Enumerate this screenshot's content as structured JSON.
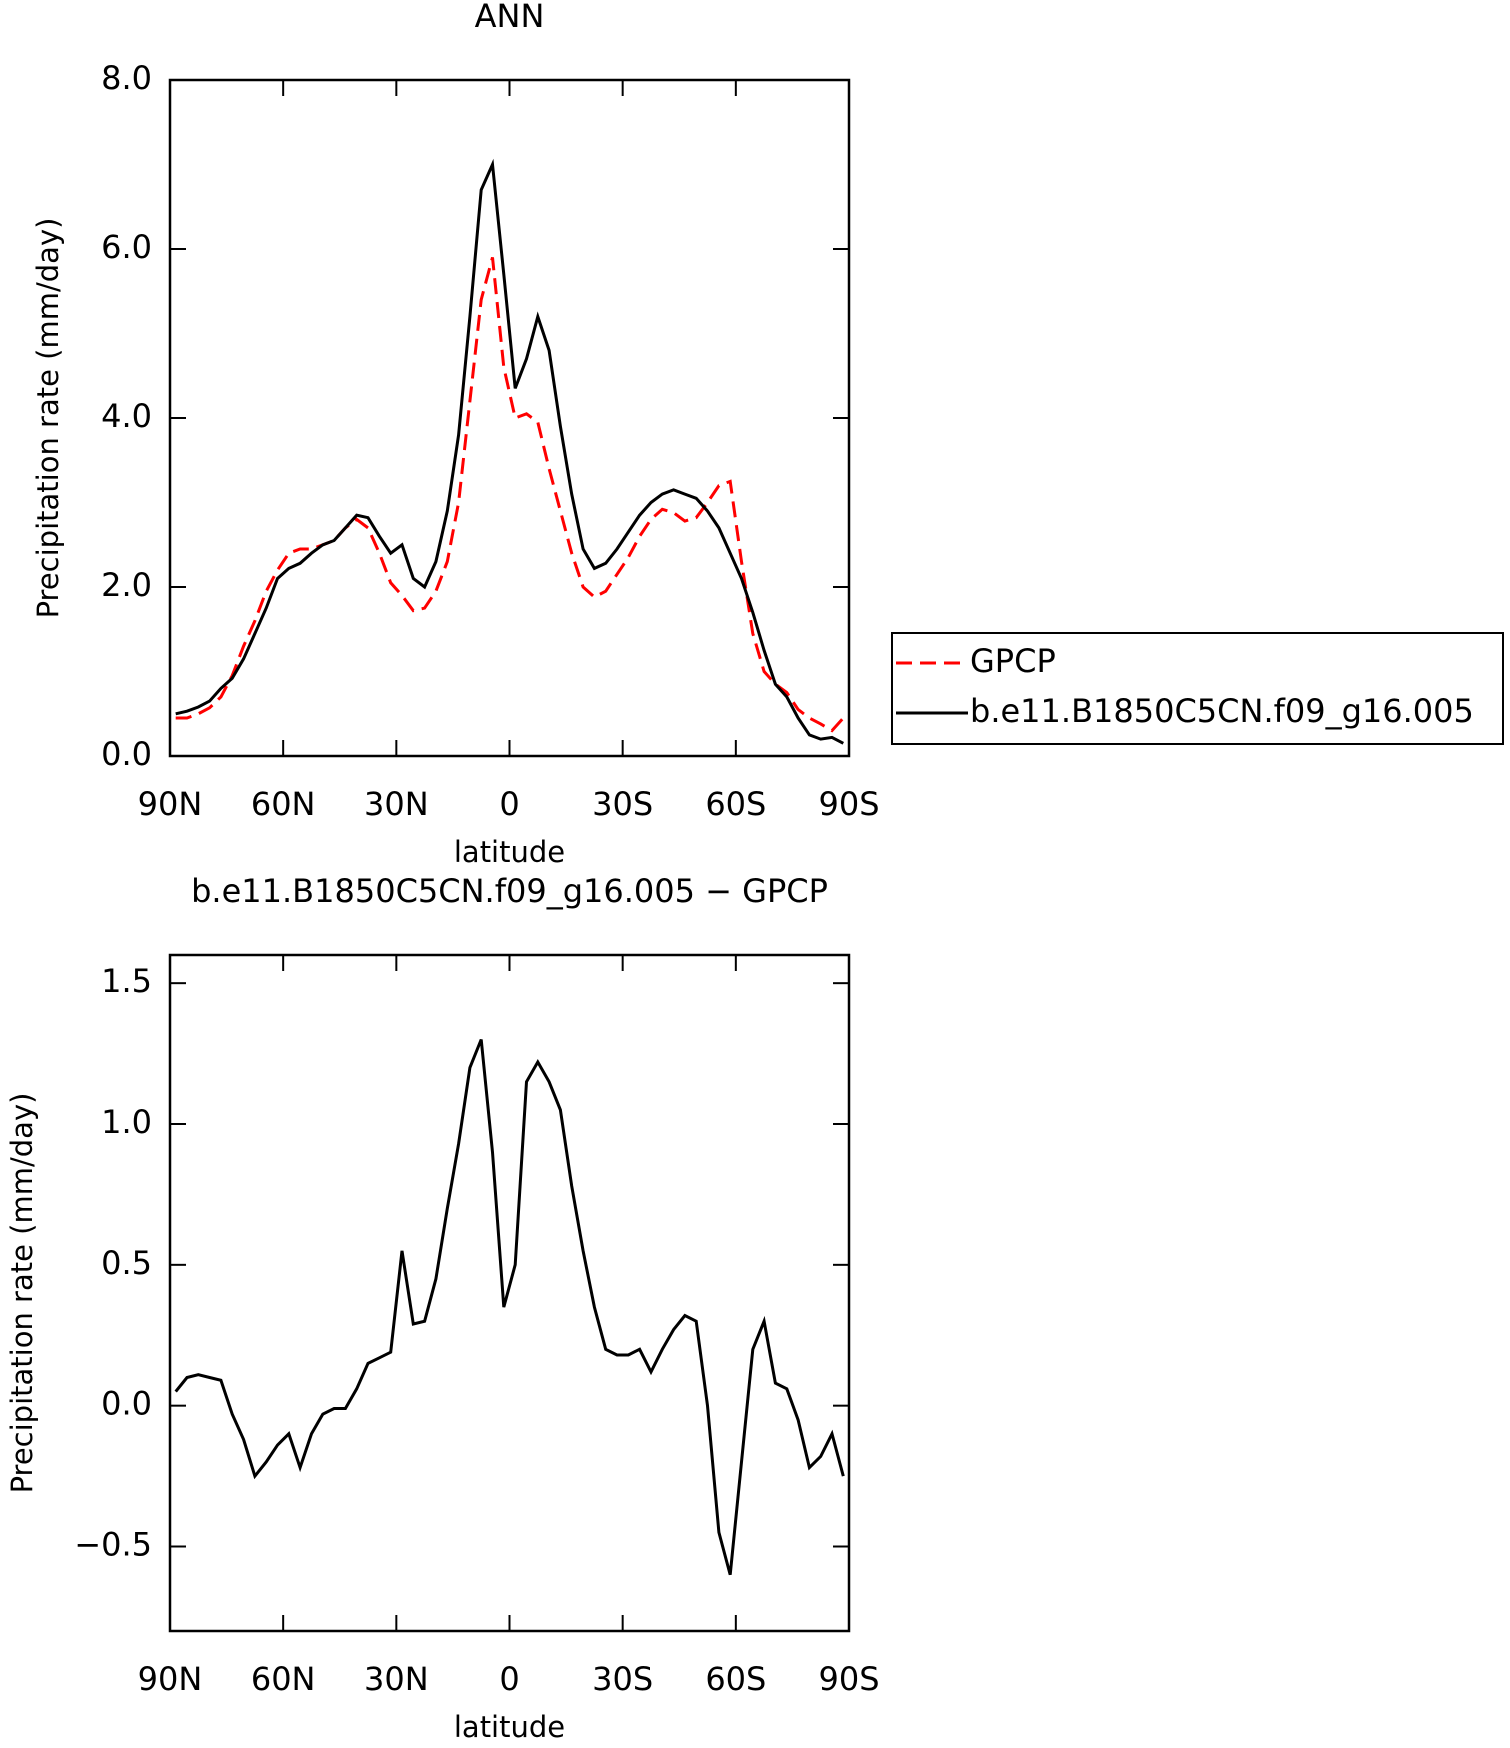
{
  "chart_data": [
    {
      "type": "line",
      "title": "ANN",
      "xlabel": "latitude",
      "ylabel": "Precipitation rate (mm/day)",
      "x": [
        88.5,
        85.5,
        82.5,
        79.5,
        76.5,
        73.5,
        70.5,
        67.5,
        64.5,
        61.5,
        58.5,
        55.5,
        52.5,
        49.5,
        46.5,
        43.5,
        40.5,
        37.5,
        34.5,
        31.5,
        28.5,
        25.5,
        22.5,
        19.5,
        16.5,
        13.5,
        10.5,
        7.5,
        4.5,
        1.5,
        -1.5,
        -4.5,
        -7.5,
        -10.5,
        -13.5,
        -16.5,
        -19.5,
        -22.5,
        -25.5,
        -28.5,
        -31.5,
        -34.5,
        -37.5,
        -40.5,
        -43.5,
        -46.5,
        -49.5,
        -52.5,
        -55.5,
        -58.5,
        -61.5,
        -64.5,
        -67.5,
        -70.5,
        -73.5,
        -76.5,
        -79.5,
        -82.5,
        -85.5,
        -88.5
      ],
      "xlim": [
        90,
        -90
      ],
      "xticks": [
        {
          "value": 90,
          "label": "90N"
        },
        {
          "value": 60,
          "label": "60N"
        },
        {
          "value": 30,
          "label": "30N"
        },
        0,
        {
          "value": -30,
          "label": "30S"
        },
        {
          "value": -60,
          "label": "60S"
        },
        {
          "value": -90,
          "label": "90S"
        }
      ],
      "ylim": [
        0,
        8
      ],
      "yticks": [
        {
          "value": 0,
          "label": "0.0"
        },
        {
          "value": 2,
          "label": "2.0"
        },
        {
          "value": 4,
          "label": "4.0"
        },
        {
          "value": 6,
          "label": "6.0"
        },
        {
          "value": 8,
          "label": "8.0"
        }
      ],
      "legend_position": "right",
      "series": [
        {
          "name": "GPCP",
          "color": "#ff0000",
          "dash": true,
          "values": [
            0.45,
            0.45,
            0.5,
            0.57,
            0.7,
            0.95,
            1.3,
            1.6,
            1.95,
            2.2,
            2.4,
            2.45,
            2.45,
            2.5,
            2.55,
            2.7,
            2.8,
            2.7,
            2.4,
            2.05,
            1.9,
            1.72,
            1.75,
            1.95,
            2.3,
            3.0,
            4.2,
            5.4,
            5.9,
            4.6,
            4.0,
            4.05,
            3.95,
            3.4,
            2.9,
            2.4,
            2.0,
            1.88,
            1.95,
            2.15,
            2.35,
            2.6,
            2.8,
            2.92,
            2.88,
            2.78,
            2.82,
            3.0,
            3.2,
            3.25,
            2.3,
            1.45,
            1.0,
            0.85,
            0.75,
            0.55,
            0.45,
            0.38,
            0.3,
            0.45
          ]
        },
        {
          "name": "b.e11.B1850C5CN.f09_g16.005",
          "color": "#000000",
          "dash": false,
          "values": [
            0.5,
            0.53,
            0.58,
            0.65,
            0.8,
            0.92,
            1.15,
            1.45,
            1.75,
            2.1,
            2.22,
            2.28,
            2.4,
            2.5,
            2.55,
            2.7,
            2.85,
            2.82,
            2.6,
            2.4,
            2.5,
            2.1,
            2.0,
            2.3,
            2.9,
            3.8,
            5.2,
            6.7,
            7.0,
            5.7,
            4.35,
            4.7,
            5.2,
            4.8,
            3.9,
            3.1,
            2.45,
            2.22,
            2.28,
            2.45,
            2.65,
            2.85,
            3.0,
            3.1,
            3.15,
            3.1,
            3.05,
            2.9,
            2.7,
            2.4,
            2.1,
            1.7,
            1.25,
            0.85,
            0.7,
            0.45,
            0.25,
            0.2,
            0.22,
            0.15
          ]
        }
      ]
    },
    {
      "type": "line",
      "title": "b.e11.B1850C5CN.f09_g16.005 − GPCP",
      "xlabel": "latitude",
      "ylabel": "Precipitation rate (mm/day)",
      "x": [
        88.5,
        85.5,
        82.5,
        79.5,
        76.5,
        73.5,
        70.5,
        67.5,
        64.5,
        61.5,
        58.5,
        55.5,
        52.5,
        49.5,
        46.5,
        43.5,
        40.5,
        37.5,
        34.5,
        31.5,
        28.5,
        25.5,
        22.5,
        19.5,
        16.5,
        13.5,
        10.5,
        7.5,
        4.5,
        1.5,
        -1.5,
        -4.5,
        -7.5,
        -10.5,
        -13.5,
        -16.5,
        -19.5,
        -22.5,
        -25.5,
        -28.5,
        -31.5,
        -34.5,
        -37.5,
        -40.5,
        -43.5,
        -46.5,
        -49.5,
        -52.5,
        -55.5,
        -58.5,
        -61.5,
        -64.5,
        -67.5,
        -70.5,
        -73.5,
        -76.5,
        -79.5,
        -82.5,
        -85.5,
        -88.5
      ],
      "xlim": [
        90,
        -90
      ],
      "xticks": [
        {
          "value": 90,
          "label": "90N"
        },
        {
          "value": 60,
          "label": "60N"
        },
        {
          "value": 30,
          "label": "30N"
        },
        0,
        {
          "value": -30,
          "label": "30S"
        },
        {
          "value": -60,
          "label": "60S"
        },
        {
          "value": -90,
          "label": "90S"
        }
      ],
      "ylim": [
        -0.8,
        1.6
      ],
      "yticks": [
        {
          "value": -0.5,
          "label": "−0.5"
        },
        {
          "value": 0,
          "label": "0.0"
        },
        0.5,
        {
          "value": 1,
          "label": "1.0"
        },
        1.5
      ],
      "series": [
        {
          "color": "#000000",
          "dash": false,
          "values": [
            0.05,
            0.1,
            0.11,
            0.1,
            0.09,
            -0.03,
            -0.12,
            -0.25,
            -0.2,
            -0.14,
            -0.1,
            -0.22,
            -0.1,
            -0.03,
            -0.01,
            -0.01,
            0.06,
            0.15,
            0.17,
            0.19,
            0.55,
            0.29,
            0.3,
            0.45,
            0.7,
            0.93,
            1.2,
            1.3,
            0.9,
            0.35,
            0.5,
            1.15,
            1.22,
            1.15,
            1.05,
            0.78,
            0.55,
            0.35,
            0.2,
            0.18,
            0.18,
            0.2,
            0.12,
            0.2,
            0.27,
            0.32,
            0.3,
            0.0,
            -0.45,
            -0.6,
            -0.2,
            0.2,
            0.3,
            0.08,
            0.06,
            -0.05,
            -0.22,
            -0.18,
            -0.1,
            -0.25
          ]
        }
      ]
    }
  ]
}
